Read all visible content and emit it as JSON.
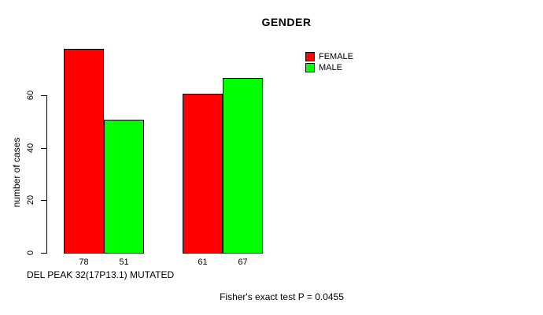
{
  "chart_data": {
    "type": "bar",
    "title": "GENDER",
    "ylabel": "number of cases",
    "xlabel": "DEL PEAK 32(17P13.1) MUTATED",
    "subtitle": "Fisher's exact test P = 0.0455",
    "legend_position": "top-right",
    "grid": false,
    "ylim": [
      0,
      78
    ],
    "yticks": [
      0,
      20,
      40,
      60
    ],
    "groups": 2,
    "series": [
      {
        "name": "FEMALE",
        "color": "#FF0000",
        "values": [
          78,
          61
        ]
      },
      {
        "name": "MALE",
        "color": "#00FF00",
        "values": [
          51,
          67
        ]
      }
    ],
    "bar_values_in_display_order": [
      78,
      51,
      61,
      67
    ],
    "bar_labels": [
      "78",
      "51",
      "61",
      "67"
    ],
    "colors": {
      "female": "#FF0000",
      "male": "#00FF00",
      "axis": "#000000",
      "text": "#000000",
      "background": "#FFFFFF"
    }
  }
}
